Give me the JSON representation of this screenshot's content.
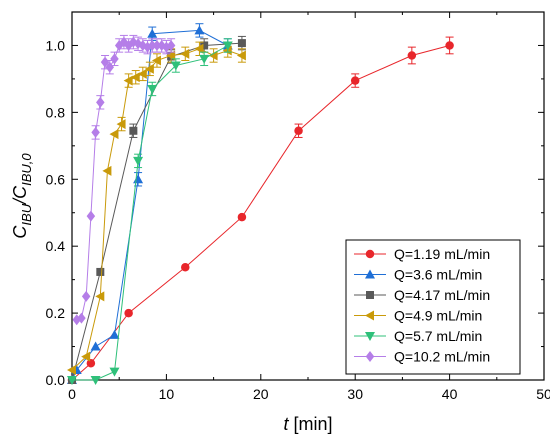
{
  "chart_data": {
    "type": "scatter",
    "xlabel_italic": "t",
    "xlabel_rest": " [min]",
    "ylabel_main": "C",
    "ylabel_sub1": "IBU",
    "ylabel_slash": "/C",
    "ylabel_sub2": "IBU,0",
    "xlim": [
      0,
      50
    ],
    "ylim": [
      0,
      1.1
    ],
    "x_ticks": [
      0,
      10,
      20,
      30,
      40,
      50
    ],
    "x_tick_labels": [
      "0",
      "10",
      "20",
      "30",
      "40",
      "50"
    ],
    "y_ticks": [
      0,
      0.2,
      0.4,
      0.6,
      0.8,
      1.0
    ],
    "y_tick_labels": [
      "0.0",
      "0.2",
      "0.4",
      "0.6",
      "0.8",
      "1.0"
    ],
    "grid": false,
    "legend_position": "bottom-right",
    "series": [
      {
        "name": "Q=1.19 mL/min",
        "color": "#e8262b",
        "marker": "circle",
        "x": [
          0,
          2,
          6,
          12,
          18,
          24,
          30,
          36,
          40
        ],
        "y": [
          0.0,
          0.05,
          0.2,
          0.337,
          0.487,
          0.745,
          0.895,
          0.97,
          1.0
        ],
        "err": [
          0,
          0,
          0,
          0,
          0,
          0.02,
          0.02,
          0.025,
          0.025
        ]
      },
      {
        "name": "Q=3.6 mL/min",
        "color": "#1f6fd6",
        "marker": "triangle-up",
        "x": [
          0,
          0.5,
          2.5,
          4.5,
          7,
          8.5,
          13.5,
          16.5
        ],
        "y": [
          0.0,
          0.03,
          0.1,
          0.135,
          0.6,
          1.035,
          1.045,
          1.0
        ],
        "err": [
          0,
          0,
          0,
          0,
          0.02,
          0.02,
          0.02,
          0.02
        ]
      },
      {
        "name": "Q=4.17 mL/min",
        "color": "#595959",
        "marker": "square",
        "x": [
          0,
          3,
          6.5,
          10.5,
          14,
          18
        ],
        "y": [
          0.0,
          0.323,
          0.745,
          0.967,
          1.0,
          1.007
        ],
        "err": [
          0,
          0,
          0.02,
          0.02,
          0.02,
          0.02
        ]
      },
      {
        "name": "Q=4.9 mL/min",
        "color": "#c99a0a",
        "marker": "triangle-left",
        "x": [
          0,
          1.5,
          3,
          3.75,
          4.5,
          5.25,
          6,
          6.75,
          7.5,
          8.25,
          9,
          10.5,
          12,
          13.5,
          15,
          16.5,
          18
        ],
        "y": [
          0.03,
          0.07,
          0.25,
          0.625,
          0.735,
          0.765,
          0.895,
          0.905,
          0.915,
          0.93,
          0.955,
          0.97,
          0.975,
          0.99,
          0.97,
          0.985,
          0.97
        ],
        "err": [
          0,
          0,
          0,
          0,
          0,
          0.02,
          0.02,
          0.02,
          0.02,
          0.02,
          0.02,
          0.02,
          0.02,
          0.02,
          0.02,
          0.02,
          0.02
        ]
      },
      {
        "name": "Q=5.7 mL/min",
        "color": "#2fc07a",
        "marker": "triangle-down",
        "x": [
          0,
          2.5,
          4.5,
          7,
          8.5,
          11,
          14,
          16.5
        ],
        "y": [
          0.0,
          0.0,
          0.025,
          0.655,
          0.87,
          0.94,
          0.96,
          1.0
        ],
        "err": [
          0,
          0,
          0,
          0.02,
          0.02,
          0.02,
          0.02,
          0.02
        ]
      },
      {
        "name": "Q=10.2 mL/min",
        "color": "#b57ee8",
        "marker": "diamond",
        "x": [
          0.5,
          1,
          1.5,
          2,
          2.5,
          3,
          3.5,
          4,
          4.5,
          5,
          5.5,
          6,
          6.5,
          7,
          7.5,
          8,
          8.5,
          9,
          9.5,
          10,
          10.5
        ],
        "y": [
          0.18,
          0.185,
          0.25,
          0.49,
          0.74,
          0.83,
          0.95,
          0.935,
          0.96,
          1.0,
          1.01,
          1.0,
          1.01,
          1.005,
          1.0,
          0.995,
          1.0,
          1.0,
          1.0,
          0.995,
          1.0
        ],
        "err": [
          0,
          0,
          0,
          0,
          0.02,
          0.02,
          0.02,
          0.02,
          0.02,
          0.02,
          0.02,
          0.02,
          0.02,
          0.02,
          0.02,
          0.02,
          0.02,
          0.02,
          0.02,
          0.02,
          0.02
        ]
      }
    ]
  }
}
